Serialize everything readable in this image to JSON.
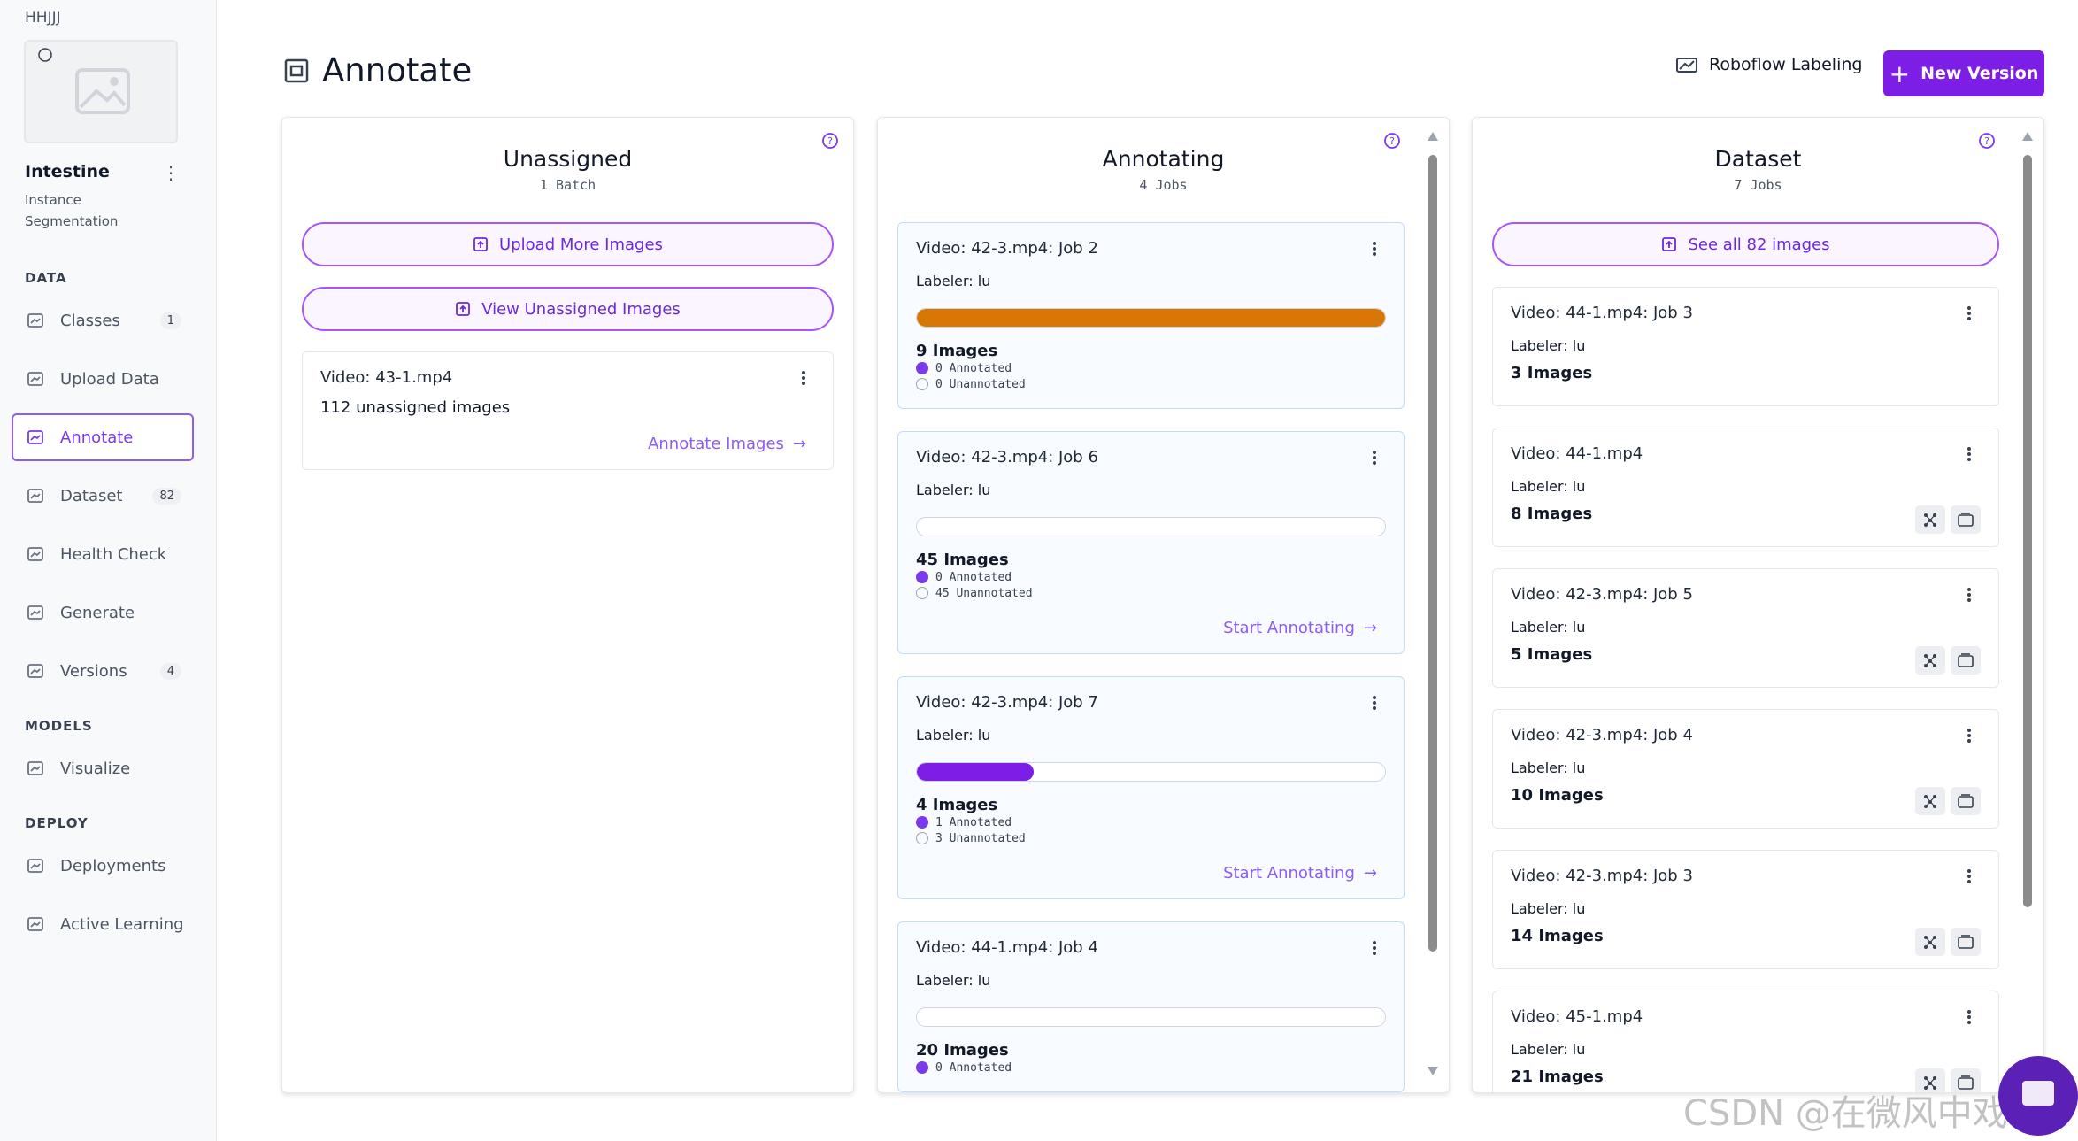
{
  "sidebar": {
    "workspace": "HHJJJ",
    "project": {
      "name": "Intestine",
      "type": "Instance Segmentation"
    },
    "sections": [
      {
        "title": "DATA",
        "items": [
          {
            "label": "Classes",
            "badge": "1"
          },
          {
            "label": "Upload Data"
          },
          {
            "label": "Annotate",
            "active": true
          },
          {
            "label": "Dataset",
            "badge": "82"
          },
          {
            "label": "Health Check"
          },
          {
            "label": "Generate"
          },
          {
            "label": "Versions",
            "badge": "4"
          }
        ]
      },
      {
        "title": "MODELS",
        "items": [
          {
            "label": "Visualize"
          }
        ]
      },
      {
        "title": "DEPLOY",
        "items": [
          {
            "label": "Deployments"
          },
          {
            "label": "Active Learning"
          }
        ]
      }
    ]
  },
  "header": {
    "title": "Annotate",
    "labeling_button": "Roboflow Labeling",
    "new_version_button": "New Version"
  },
  "columns": [
    {
      "title": "Unassigned",
      "subtitle": "1 Batch",
      "buttons": [
        "Upload More Images",
        "View Unassigned Images"
      ],
      "cards": [
        {
          "title": "Video: 43-1.mp4",
          "text": "112 unassigned images",
          "link": "Annotate Images"
        }
      ]
    },
    {
      "title": "Annotating",
      "subtitle": "4 Jobs",
      "cards": [
        {
          "title": "Video: 42-3.mp4: Job 2",
          "labeler": "Labeler: lu",
          "progress": 100,
          "progress_color": "#d97706",
          "images": "9 Images",
          "annotated": "0 Annotated",
          "unannotated": "0 Unannotated"
        },
        {
          "title": "Video: 42-3.mp4: Job 6",
          "labeler": "Labeler: lu",
          "progress": 0,
          "images": "45 Images",
          "annotated": "0 Annotated",
          "unannotated": "45 Unannotated",
          "link": "Start Annotating"
        },
        {
          "title": "Video: 42-3.mp4: Job 7",
          "labeler": "Labeler: lu",
          "progress": 25,
          "progress_color": "#7c1ee6",
          "images": "4 Images",
          "annotated": "1 Annotated",
          "unannotated": "3 Unannotated",
          "link": "Start Annotating"
        },
        {
          "title": "Video: 44-1.mp4: Job 4",
          "labeler": "Labeler: lu",
          "progress": 0,
          "images": "20 Images",
          "annotated": "0 Annotated"
        }
      ]
    },
    {
      "title": "Dataset",
      "subtitle": "7 Jobs",
      "buttons": [
        "See all 82 images"
      ],
      "cards": [
        {
          "title": "Video: 44-1.mp4: Job 3",
          "labeler": "Labeler: lu",
          "images": "3 Images"
        },
        {
          "title": "Video: 44-1.mp4",
          "labeler": "Labeler: lu",
          "images": "8 Images",
          "actions": true
        },
        {
          "title": "Video: 42-3.mp4: Job 5",
          "labeler": "Labeler: lu",
          "images": "5 Images",
          "actions": true
        },
        {
          "title": "Video: 42-3.mp4: Job 4",
          "labeler": "Labeler: lu",
          "images": "10 Images",
          "actions": true
        },
        {
          "title": "Video: 42-3.mp4: Job 3",
          "labeler": "Labeler: lu",
          "images": "14 Images",
          "actions": true
        },
        {
          "title": "Video: 45-1.mp4",
          "labeler": "Labeler: lu",
          "images": "21 Images",
          "actions": true
        }
      ]
    }
  ],
  "watermark": "CSDN @在微风中戏唱"
}
